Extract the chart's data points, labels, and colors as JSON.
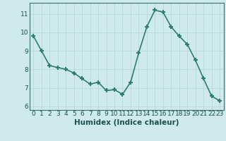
{
  "x": [
    0,
    1,
    2,
    3,
    4,
    5,
    6,
    7,
    8,
    9,
    10,
    11,
    12,
    13,
    14,
    15,
    16,
    17,
    18,
    19,
    20,
    21,
    22,
    23
  ],
  "y": [
    9.8,
    9.0,
    8.2,
    8.1,
    8.0,
    7.8,
    7.5,
    7.2,
    7.3,
    6.85,
    6.9,
    6.65,
    7.3,
    8.9,
    10.3,
    11.2,
    11.1,
    10.3,
    9.8,
    9.35,
    8.5,
    7.5,
    6.55,
    6.3
  ],
  "line_color": "#2e7d6e",
  "marker": "+",
  "marker_size": 5,
  "marker_lw": 1.5,
  "bg_color": "#ceeaea",
  "grid_color": "#b8d8d8",
  "xlabel": "Humidex (Indice chaleur)",
  "xlabel_fontsize": 7.5,
  "xlabel_bold": true,
  "ylim": [
    5.8,
    11.6
  ],
  "xlim": [
    -0.5,
    23.5
  ],
  "yticks": [
    6,
    7,
    8,
    9,
    10,
    11
  ],
  "xticks": [
    0,
    1,
    2,
    3,
    4,
    5,
    6,
    7,
    8,
    9,
    10,
    11,
    12,
    13,
    14,
    15,
    16,
    17,
    18,
    19,
    20,
    21,
    22,
    23
  ],
  "tick_fontsize": 6.5,
  "line_width": 1.2
}
